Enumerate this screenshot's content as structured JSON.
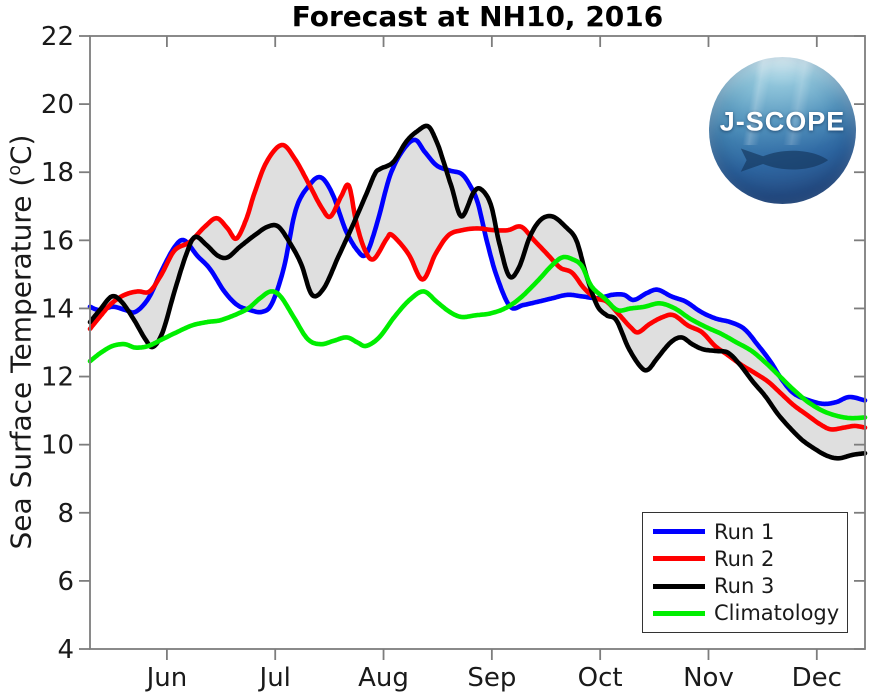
{
  "title": "Forecast at NH10, 2016",
  "axes": {
    "ylabel_prefix": "Sea Surface Temperature (",
    "ylabel_degree": "o",
    "ylabel_suffix": "C)",
    "y_ticks": [
      4,
      6,
      8,
      10,
      12,
      14,
      16,
      18,
      20,
      22
    ],
    "x_ticks": [
      {
        "month": 6,
        "label": "Jun"
      },
      {
        "month": 7,
        "label": "Jul"
      },
      {
        "month": 8,
        "label": "Aug"
      },
      {
        "month": 9,
        "label": "Sep"
      },
      {
        "month": 10,
        "label": "Oct"
      },
      {
        "month": 11,
        "label": "Nov"
      },
      {
        "month": 12,
        "label": "Dec"
      }
    ]
  },
  "legend": {
    "position": "lower right",
    "entries": [
      {
        "label": "Run 1",
        "color": "#0000ff"
      },
      {
        "label": "Run 2",
        "color": "#ff0000"
      },
      {
        "label": "Run 3",
        "color": "#000000"
      },
      {
        "label": "Climatology",
        "color": "#00ee00"
      }
    ]
  },
  "logo": {
    "text": "J-SCOPE"
  },
  "colors": {
    "envelope": "#dfdfdf",
    "axis": "#7d7d7d",
    "text": "#1a1a1a"
  },
  "chart_data": {
    "type": "line",
    "title": "Forecast at NH10, 2016",
    "xlabel": "",
    "ylabel": "Sea Surface Temperature (°C)",
    "x_unit": "month-of-year (6 = Jun 1 ... 12 = Dec 1)",
    "x_range": [
      5.29,
      12.445
    ],
    "y_range": [
      4,
      22
    ],
    "grid": false,
    "envelope": "gray band spans the min-max envelope of Run 1, Run 2 and Run 3",
    "series": [
      {
        "name": "Run 1",
        "color": "#0000ff",
        "points": [
          [
            5.29,
            14.05
          ],
          [
            5.38,
            13.95
          ],
          [
            5.5,
            14.05
          ],
          [
            5.62,
            13.95
          ],
          [
            5.71,
            13.9
          ],
          [
            5.83,
            14.3
          ],
          [
            5.95,
            15.1
          ],
          [
            6.07,
            15.8
          ],
          [
            6.16,
            16.0
          ],
          [
            6.28,
            15.55
          ],
          [
            6.4,
            15.15
          ],
          [
            6.53,
            14.5
          ],
          [
            6.65,
            14.1
          ],
          [
            6.77,
            13.95
          ],
          [
            6.88,
            13.9
          ],
          [
            6.97,
            14.15
          ],
          [
            7.08,
            15.2
          ],
          [
            7.19,
            16.9
          ],
          [
            7.31,
            17.6
          ],
          [
            7.42,
            17.85
          ],
          [
            7.53,
            17.35
          ],
          [
            7.65,
            16.3
          ],
          [
            7.76,
            15.7
          ],
          [
            7.84,
            15.6
          ],
          [
            7.94,
            16.5
          ],
          [
            8.06,
            17.9
          ],
          [
            8.18,
            18.65
          ],
          [
            8.29,
            18.95
          ],
          [
            8.38,
            18.6
          ],
          [
            8.49,
            18.2
          ],
          [
            8.61,
            18.05
          ],
          [
            8.72,
            17.95
          ],
          [
            8.8,
            17.6
          ],
          [
            8.87,
            17.1
          ],
          [
            8.96,
            15.9
          ],
          [
            9.05,
            14.9
          ],
          [
            9.17,
            14.05
          ],
          [
            9.29,
            14.1
          ],
          [
            9.43,
            14.2
          ],
          [
            9.56,
            14.3
          ],
          [
            9.7,
            14.4
          ],
          [
            9.84,
            14.35
          ],
          [
            9.98,
            14.3
          ],
          [
            10.11,
            14.4
          ],
          [
            10.22,
            14.4
          ],
          [
            10.31,
            14.25
          ],
          [
            10.43,
            14.45
          ],
          [
            10.53,
            14.55
          ],
          [
            10.66,
            14.35
          ],
          [
            10.79,
            14.2
          ],
          [
            10.93,
            13.9
          ],
          [
            11.07,
            13.7
          ],
          [
            11.2,
            13.6
          ],
          [
            11.33,
            13.4
          ],
          [
            11.45,
            12.95
          ],
          [
            11.57,
            12.45
          ],
          [
            11.68,
            11.9
          ],
          [
            11.79,
            11.5
          ],
          [
            11.93,
            11.3
          ],
          [
            12.06,
            11.2
          ],
          [
            12.18,
            11.25
          ],
          [
            12.3,
            11.4
          ],
          [
            12.445,
            11.3
          ]
        ]
      },
      {
        "name": "Run 2",
        "color": "#ff0000",
        "points": [
          [
            5.29,
            13.4
          ],
          [
            5.38,
            13.75
          ],
          [
            5.49,
            14.15
          ],
          [
            5.61,
            14.4
          ],
          [
            5.73,
            14.5
          ],
          [
            5.84,
            14.5
          ],
          [
            5.95,
            15.0
          ],
          [
            6.07,
            15.7
          ],
          [
            6.21,
            15.95
          ],
          [
            6.35,
            16.4
          ],
          [
            6.46,
            16.65
          ],
          [
            6.56,
            16.35
          ],
          [
            6.64,
            16.05
          ],
          [
            6.73,
            16.6
          ],
          [
            6.81,
            17.4
          ],
          [
            6.92,
            18.3
          ],
          [
            7.06,
            18.8
          ],
          [
            7.18,
            18.4
          ],
          [
            7.32,
            17.6
          ],
          [
            7.43,
            16.95
          ],
          [
            7.51,
            16.7
          ],
          [
            7.61,
            17.3
          ],
          [
            7.68,
            17.6
          ],
          [
            7.75,
            16.5
          ],
          [
            7.83,
            15.7
          ],
          [
            7.91,
            15.45
          ],
          [
            8.03,
            16.05
          ],
          [
            8.08,
            16.15
          ],
          [
            8.23,
            15.6
          ],
          [
            8.36,
            14.85
          ],
          [
            8.48,
            15.6
          ],
          [
            8.6,
            16.15
          ],
          [
            8.73,
            16.3
          ],
          [
            8.87,
            16.35
          ],
          [
            9.01,
            16.3
          ],
          [
            9.15,
            16.3
          ],
          [
            9.27,
            16.4
          ],
          [
            9.39,
            16.0
          ],
          [
            9.51,
            15.6
          ],
          [
            9.63,
            15.2
          ],
          [
            9.74,
            15.05
          ],
          [
            9.85,
            14.6
          ],
          [
            9.96,
            14.3
          ],
          [
            10.06,
            14.2
          ],
          [
            10.18,
            13.8
          ],
          [
            10.28,
            13.45
          ],
          [
            10.35,
            13.3
          ],
          [
            10.46,
            13.55
          ],
          [
            10.58,
            13.75
          ],
          [
            10.68,
            13.8
          ],
          [
            10.81,
            13.5
          ],
          [
            10.94,
            13.3
          ],
          [
            11.06,
            12.9
          ],
          [
            11.17,
            12.65
          ],
          [
            11.3,
            12.35
          ],
          [
            11.43,
            12.1
          ],
          [
            11.55,
            11.85
          ],
          [
            11.67,
            11.5
          ],
          [
            11.79,
            11.15
          ],
          [
            11.92,
            10.85
          ],
          [
            12.03,
            10.6
          ],
          [
            12.13,
            10.45
          ],
          [
            12.25,
            10.5
          ],
          [
            12.35,
            10.55
          ],
          [
            12.445,
            10.5
          ]
        ]
      },
      {
        "name": "Run 3",
        "color": "#000000",
        "points": [
          [
            5.29,
            13.6
          ],
          [
            5.38,
            13.95
          ],
          [
            5.49,
            14.35
          ],
          [
            5.58,
            14.2
          ],
          [
            5.69,
            13.7
          ],
          [
            5.8,
            13.1
          ],
          [
            5.87,
            12.87
          ],
          [
            5.96,
            13.3
          ],
          [
            6.07,
            14.5
          ],
          [
            6.18,
            15.6
          ],
          [
            6.26,
            16.1
          ],
          [
            6.37,
            15.85
          ],
          [
            6.47,
            15.55
          ],
          [
            6.56,
            15.5
          ],
          [
            6.67,
            15.8
          ],
          [
            6.81,
            16.15
          ],
          [
            6.93,
            16.4
          ],
          [
            7.03,
            16.4
          ],
          [
            7.14,
            15.9
          ],
          [
            7.24,
            15.3
          ],
          [
            7.34,
            14.4
          ],
          [
            7.45,
            14.6
          ],
          [
            7.58,
            15.5
          ],
          [
            7.71,
            16.4
          ],
          [
            7.84,
            17.35
          ],
          [
            7.92,
            17.95
          ],
          [
            7.97,
            18.1
          ],
          [
            8.09,
            18.3
          ],
          [
            8.21,
            18.9
          ],
          [
            8.31,
            19.2
          ],
          [
            8.41,
            19.35
          ],
          [
            8.49,
            18.9
          ],
          [
            8.55,
            18.35
          ],
          [
            8.63,
            17.55
          ],
          [
            8.72,
            16.7
          ],
          [
            8.83,
            17.4
          ],
          [
            8.9,
            17.5
          ],
          [
            8.99,
            17.05
          ],
          [
            9.07,
            15.9
          ],
          [
            9.16,
            14.95
          ],
          [
            9.25,
            15.2
          ],
          [
            9.35,
            16.1
          ],
          [
            9.45,
            16.6
          ],
          [
            9.56,
            16.7
          ],
          [
            9.68,
            16.4
          ],
          [
            9.78,
            16.0
          ],
          [
            9.87,
            15.0
          ],
          [
            9.97,
            14.1
          ],
          [
            10.06,
            13.8
          ],
          [
            10.15,
            13.65
          ],
          [
            10.26,
            12.85
          ],
          [
            10.37,
            12.3
          ],
          [
            10.44,
            12.2
          ],
          [
            10.53,
            12.55
          ],
          [
            10.65,
            13.0
          ],
          [
            10.75,
            13.15
          ],
          [
            10.85,
            12.95
          ],
          [
            10.95,
            12.8
          ],
          [
            11.07,
            12.75
          ],
          [
            11.18,
            12.7
          ],
          [
            11.29,
            12.35
          ],
          [
            11.41,
            11.85
          ],
          [
            11.53,
            11.4
          ],
          [
            11.64,
            10.9
          ],
          [
            11.75,
            10.5
          ],
          [
            11.86,
            10.15
          ],
          [
            11.97,
            9.9
          ],
          [
            12.09,
            9.68
          ],
          [
            12.2,
            9.6
          ],
          [
            12.33,
            9.7
          ],
          [
            12.445,
            9.75
          ]
        ]
      },
      {
        "name": "Climatology",
        "color": "#00ee00",
        "points": [
          [
            5.29,
            12.45
          ],
          [
            5.39,
            12.7
          ],
          [
            5.5,
            12.9
          ],
          [
            5.61,
            12.95
          ],
          [
            5.71,
            12.85
          ],
          [
            5.83,
            12.9
          ],
          [
            5.96,
            13.1
          ],
          [
            6.09,
            13.3
          ],
          [
            6.23,
            13.5
          ],
          [
            6.37,
            13.6
          ],
          [
            6.49,
            13.65
          ],
          [
            6.62,
            13.8
          ],
          [
            6.75,
            14.0
          ],
          [
            6.86,
            14.3
          ],
          [
            6.96,
            14.5
          ],
          [
            7.05,
            14.35
          ],
          [
            7.17,
            13.75
          ],
          [
            7.3,
            13.1
          ],
          [
            7.42,
            12.95
          ],
          [
            7.54,
            13.05
          ],
          [
            7.66,
            13.15
          ],
          [
            7.76,
            13.0
          ],
          [
            7.84,
            12.9
          ],
          [
            7.96,
            13.15
          ],
          [
            8.1,
            13.75
          ],
          [
            8.24,
            14.25
          ],
          [
            8.37,
            14.5
          ],
          [
            8.49,
            14.2
          ],
          [
            8.61,
            13.9
          ],
          [
            8.72,
            13.75
          ],
          [
            8.85,
            13.8
          ],
          [
            8.98,
            13.85
          ],
          [
            9.12,
            14.0
          ],
          [
            9.26,
            14.3
          ],
          [
            9.42,
            14.8
          ],
          [
            9.55,
            15.25
          ],
          [
            9.65,
            15.5
          ],
          [
            9.74,
            15.45
          ],
          [
            9.83,
            15.25
          ],
          [
            9.92,
            14.65
          ],
          [
            10.04,
            14.3
          ],
          [
            10.16,
            13.95
          ],
          [
            10.28,
            14.0
          ],
          [
            10.41,
            14.05
          ],
          [
            10.55,
            14.15
          ],
          [
            10.69,
            14.0
          ],
          [
            10.83,
            13.7
          ],
          [
            10.98,
            13.45
          ],
          [
            11.12,
            13.25
          ],
          [
            11.26,
            13.0
          ],
          [
            11.4,
            12.75
          ],
          [
            11.53,
            12.4
          ],
          [
            11.66,
            12.0
          ],
          [
            11.79,
            11.6
          ],
          [
            11.92,
            11.25
          ],
          [
            12.05,
            11.0
          ],
          [
            12.18,
            10.85
          ],
          [
            12.31,
            10.78
          ],
          [
            12.445,
            10.8
          ]
        ]
      }
    ]
  }
}
